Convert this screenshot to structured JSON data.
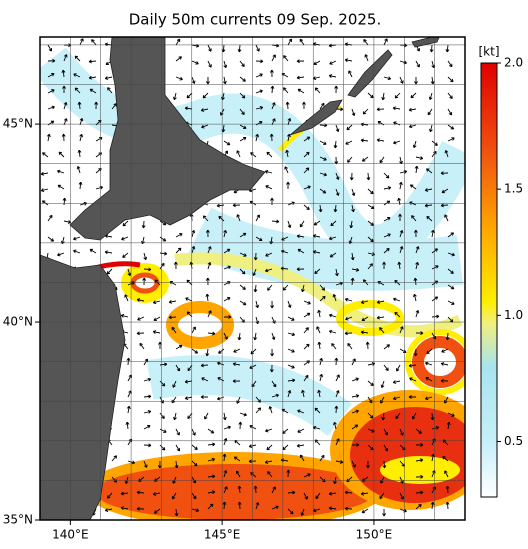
{
  "title": "Daily 50m currents 09 Sep. 2025.",
  "map": {
    "lon_lim": [
      139,
      153
    ],
    "lat_lim": [
      35,
      47.2
    ],
    "lon_ticks": [
      {
        "value": 140,
        "label": "140°E"
      },
      {
        "value": 145,
        "label": "145°E"
      },
      {
        "value": 150,
        "label": "150°E"
      }
    ],
    "lat_ticks": [
      {
        "value": 35,
        "label": "35°N"
      },
      {
        "value": 40,
        "label": "40°N"
      },
      {
        "value": 45,
        "label": "45°N"
      }
    ]
  },
  "colorbar": {
    "unit": "[kt]",
    "lim": [
      0.28,
      2.0
    ],
    "ticks": [
      {
        "value": 0.5,
        "label": "0.5"
      },
      {
        "value": 1.0,
        "label": "1.0"
      },
      {
        "value": 1.5,
        "label": "1.5"
      },
      {
        "value": 2.0,
        "label": "2.0"
      }
    ]
  }
}
